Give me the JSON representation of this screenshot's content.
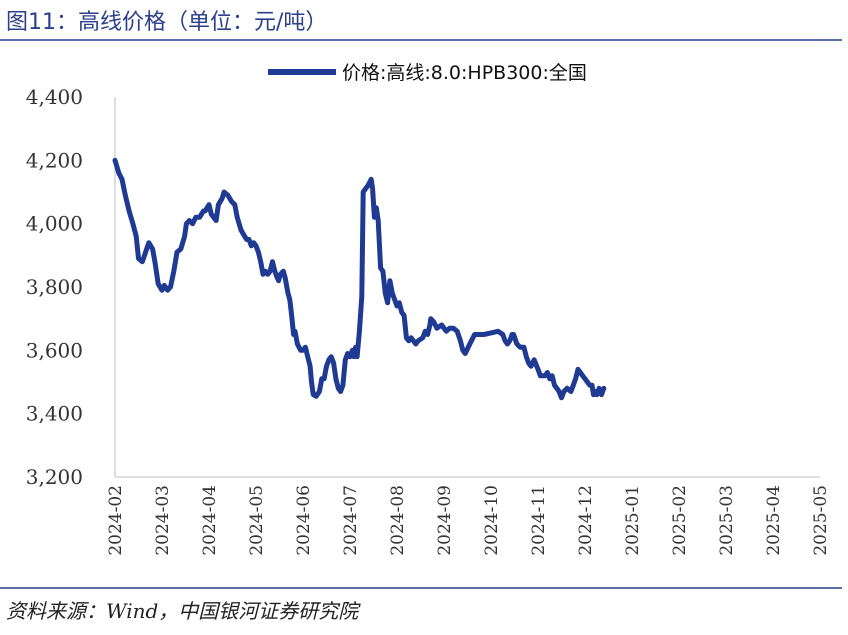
{
  "figure": {
    "title": "图11：高线价格（单位：元/吨）",
    "source": "资料来源：Wind，中国银河证券研究院"
  },
  "chart_data": {
    "type": "line",
    "title": "",
    "xlabel": "",
    "ylabel": "",
    "ylim": [
      3200,
      4400
    ],
    "yticks": [
      3200,
      3400,
      3600,
      3800,
      4000,
      4200,
      4400
    ],
    "ytick_labels": [
      "3,200",
      "3,400",
      "3,600",
      "3,800",
      "4,000",
      "4,200",
      "4,400"
    ],
    "categories": [
      "2024-02",
      "2024-03",
      "2024-04",
      "2024-05",
      "2024-06",
      "2024-07",
      "2024-08",
      "2024-09",
      "2024-10",
      "2024-11",
      "2024-12",
      "2025-01",
      "2025-02",
      "2025-03",
      "2025-04",
      "2025-05"
    ],
    "grid": false,
    "legend": "top-center",
    "color": "#1f3a93",
    "series": [
      {
        "name": "价格:高线:8.0:HPB300:全国",
        "points": [
          [
            0.0,
            4200
          ],
          [
            0.08,
            4160
          ],
          [
            0.15,
            4140
          ],
          [
            0.22,
            4090
          ],
          [
            0.3,
            4040
          ],
          [
            0.38,
            4000
          ],
          [
            0.45,
            3960
          ],
          [
            0.5,
            3890
          ],
          [
            0.58,
            3880
          ],
          [
            0.65,
            3910
          ],
          [
            0.72,
            3940
          ],
          [
            0.8,
            3920
          ],
          [
            0.85,
            3880
          ],
          [
            0.92,
            3810
          ],
          [
            1.0,
            3790
          ],
          [
            1.05,
            3805
          ],
          [
            1.12,
            3790
          ],
          [
            1.18,
            3800
          ],
          [
            1.25,
            3850
          ],
          [
            1.32,
            3910
          ],
          [
            1.4,
            3920
          ],
          [
            1.48,
            3960
          ],
          [
            1.52,
            4000
          ],
          [
            1.58,
            4010
          ],
          [
            1.65,
            4000
          ],
          [
            1.72,
            4020
          ],
          [
            1.8,
            4020
          ],
          [
            1.88,
            4040
          ],
          [
            1.92,
            4040
          ],
          [
            2.0,
            4060
          ],
          [
            2.05,
            4030
          ],
          [
            2.1,
            4020
          ],
          [
            2.15,
            4010
          ],
          [
            2.2,
            4060
          ],
          [
            2.28,
            4080
          ],
          [
            2.32,
            4100
          ],
          [
            2.4,
            4090
          ],
          [
            2.48,
            4070
          ],
          [
            2.55,
            4060
          ],
          [
            2.6,
            4020
          ],
          [
            2.68,
            3980
          ],
          [
            2.72,
            3970
          ],
          [
            2.8,
            3950
          ],
          [
            2.85,
            3950
          ],
          [
            2.9,
            3930
          ],
          [
            2.95,
            3940
          ],
          [
            3.0,
            3930
          ],
          [
            3.05,
            3910
          ],
          [
            3.1,
            3880
          ],
          [
            3.15,
            3840
          ],
          [
            3.2,
            3850
          ],
          [
            3.25,
            3840
          ],
          [
            3.3,
            3850
          ],
          [
            3.35,
            3880
          ],
          [
            3.4,
            3850
          ],
          [
            3.45,
            3830
          ],
          [
            3.48,
            3820
          ],
          [
            3.52,
            3840
          ],
          [
            3.58,
            3850
          ],
          [
            3.62,
            3830
          ],
          [
            3.68,
            3780
          ],
          [
            3.72,
            3760
          ],
          [
            3.75,
            3720
          ],
          [
            3.8,
            3650
          ],
          [
            3.83,
            3660
          ],
          [
            3.88,
            3620
          ],
          [
            3.95,
            3600
          ],
          [
            4.0,
            3600
          ],
          [
            4.05,
            3610
          ],
          [
            4.1,
            3580
          ],
          [
            4.15,
            3550
          ],
          [
            4.18,
            3500
          ],
          [
            4.22,
            3460
          ],
          [
            4.28,
            3455
          ],
          [
            4.35,
            3470
          ],
          [
            4.4,
            3510
          ],
          [
            4.45,
            3510
          ],
          [
            4.5,
            3550
          ],
          [
            4.55,
            3570
          ],
          [
            4.6,
            3580
          ],
          [
            4.65,
            3560
          ],
          [
            4.7,
            3510
          ],
          [
            4.75,
            3480
          ],
          [
            4.8,
            3470
          ],
          [
            4.85,
            3490
          ],
          [
            4.9,
            3570
          ],
          [
            4.95,
            3590
          ],
          [
            5.0,
            3580
          ],
          [
            5.05,
            3600
          ],
          [
            5.08,
            3580
          ],
          [
            5.12,
            3610
          ],
          [
            5.15,
            3580
          ],
          [
            5.2,
            3660
          ],
          [
            5.25,
            3770
          ],
          [
            5.28,
            4100
          ],
          [
            5.33,
            4110
          ],
          [
            5.38,
            4120
          ],
          [
            5.45,
            4140
          ],
          [
            5.48,
            4110
          ],
          [
            5.52,
            4020
          ],
          [
            5.56,
            4050
          ],
          [
            5.6,
            4010
          ],
          [
            5.65,
            3860
          ],
          [
            5.7,
            3850
          ],
          [
            5.75,
            3780
          ],
          [
            5.8,
            3750
          ],
          [
            5.85,
            3820
          ],
          [
            5.9,
            3780
          ],
          [
            5.95,
            3760
          ],
          [
            6.0,
            3740
          ],
          [
            6.05,
            3750
          ],
          [
            6.1,
            3720
          ],
          [
            6.15,
            3710
          ],
          [
            6.2,
            3640
          ],
          [
            6.25,
            3630
          ],
          [
            6.3,
            3640
          ],
          [
            6.35,
            3630
          ],
          [
            6.4,
            3620
          ],
          [
            6.45,
            3630
          ],
          [
            6.55,
            3640
          ],
          [
            6.6,
            3660
          ],
          [
            6.65,
            3650
          ],
          [
            6.7,
            3680
          ],
          [
            6.72,
            3700
          ],
          [
            6.78,
            3690
          ],
          [
            6.85,
            3670
          ],
          [
            6.95,
            3680
          ],
          [
            7.0,
            3670
          ],
          [
            7.05,
            3660
          ],
          [
            7.12,
            3670
          ],
          [
            7.2,
            3670
          ],
          [
            7.28,
            3660
          ],
          [
            7.35,
            3630
          ],
          [
            7.4,
            3600
          ],
          [
            7.45,
            3590
          ],
          [
            7.55,
            3620
          ],
          [
            7.65,
            3650
          ],
          [
            7.75,
            3650
          ],
          [
            7.85,
            3650
          ],
          [
            8.0,
            3655
          ],
          [
            8.15,
            3660
          ],
          [
            8.25,
            3650
          ],
          [
            8.3,
            3630
          ],
          [
            8.35,
            3620
          ],
          [
            8.4,
            3630
          ],
          [
            8.45,
            3650
          ],
          [
            8.48,
            3650
          ],
          [
            8.55,
            3620
          ],
          [
            8.62,
            3610
          ],
          [
            8.7,
            3610
          ],
          [
            8.75,
            3580
          ],
          [
            8.8,
            3560
          ],
          [
            8.85,
            3550
          ],
          [
            8.92,
            3570
          ],
          [
            9.0,
            3540
          ],
          [
            9.05,
            3520
          ],
          [
            9.1,
            3520
          ],
          [
            9.15,
            3520
          ],
          [
            9.2,
            3530
          ],
          [
            9.25,
            3510
          ],
          [
            9.3,
            3520
          ],
          [
            9.35,
            3490
          ],
          [
            9.4,
            3480
          ],
          [
            9.45,
            3470
          ],
          [
            9.5,
            3450
          ],
          [
            9.55,
            3470
          ],
          [
            9.62,
            3480
          ],
          [
            9.7,
            3470
          ],
          [
            9.75,
            3490
          ],
          [
            9.8,
            3510
          ],
          [
            9.85,
            3540
          ],
          [
            9.9,
            3530
          ],
          [
            9.95,
            3520
          ],
          [
            10.0,
            3510
          ],
          [
            10.05,
            3500
          ],
          [
            10.1,
            3490
          ],
          [
            10.15,
            3490
          ],
          [
            10.18,
            3460
          ],
          [
            10.22,
            3470
          ],
          [
            10.25,
            3460
          ],
          [
            10.3,
            3480
          ],
          [
            10.35,
            3460
          ],
          [
            10.4,
            3480
          ]
        ],
        "points_note": "x measured in month units from 2024-02 (category index)"
      }
    ]
  }
}
